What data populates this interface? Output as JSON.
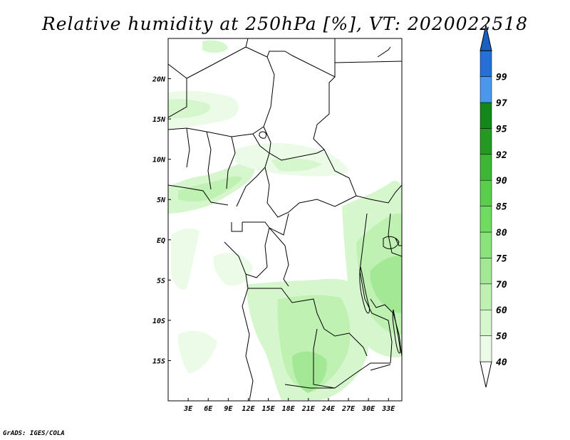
{
  "credit": "GrADS: IGES/COLA",
  "chart_data": {
    "type": "heatmap",
    "title": "Relative humidity at 250hPa [%], VT: 2020022518",
    "variable": "Relative humidity",
    "units": "%",
    "level": "250hPa",
    "valid_time": "2020022518",
    "x_axis": {
      "label": "",
      "range_deg_east": [
        0,
        35
      ],
      "ticks": [
        {
          "value": 3,
          "label": "3E"
        },
        {
          "value": 6,
          "label": "6E"
        },
        {
          "value": 9,
          "label": "9E"
        },
        {
          "value": 12,
          "label": "12E"
        },
        {
          "value": 15,
          "label": "15E"
        },
        {
          "value": 18,
          "label": "18E"
        },
        {
          "value": 21,
          "label": "21E"
        },
        {
          "value": 24,
          "label": "24E"
        },
        {
          "value": 27,
          "label": "27E"
        },
        {
          "value": 30,
          "label": "30E"
        },
        {
          "value": 33,
          "label": "33E"
        }
      ]
    },
    "y_axis": {
      "label": "",
      "range_deg_north": [
        -20,
        25
      ],
      "ticks": [
        {
          "value": 20,
          "label": "20N"
        },
        {
          "value": 15,
          "label": "15N"
        },
        {
          "value": 10,
          "label": "10N"
        },
        {
          "value": 5,
          "label": "5N"
        },
        {
          "value": 0,
          "label": "EQ"
        },
        {
          "value": -5,
          "label": "5S"
        },
        {
          "value": -10,
          "label": "10S"
        },
        {
          "value": -15,
          "label": "15S"
        }
      ]
    },
    "colorbar": {
      "orientation": "vertical",
      "placement": "right",
      "levels": [
        {
          "label": "40",
          "color": "#ebfbe7"
        },
        {
          "label": "50",
          "color": "#d6f6cd"
        },
        {
          "label": "60",
          "color": "#bff1b2"
        },
        {
          "label": "70",
          "color": "#a3e995"
        },
        {
          "label": "75",
          "color": "#8be37b"
        },
        {
          "label": "80",
          "color": "#6fdb60"
        },
        {
          "label": "85",
          "color": "#58cf4a"
        },
        {
          "label": "90",
          "color": "#3bb635"
        },
        {
          "label": "92",
          "color": "#239a22"
        },
        {
          "label": "95",
          "color": "#12871a"
        },
        {
          "label": "97",
          "color": "#4a98ee"
        },
        {
          "label": "99",
          "color": "#2470d6"
        }
      ],
      "top_triangle_color": "#1a5fc2",
      "bottom_triangle_color": "#ffffff"
    },
    "regions": [
      {
        "name": "west-africa-coast-band",
        "lon": [
          0,
          12
        ],
        "lat": [
          3,
          9
        ],
        "value_level": "50-60"
      },
      {
        "name": "sahel-band",
        "lon": [
          0,
          8
        ],
        "lat": [
          13,
          17
        ],
        "value_level": "40-50"
      },
      {
        "name": "central-band",
        "lon": [
          15,
          25
        ],
        "lat": [
          8,
          12
        ],
        "value_level": "40-50"
      },
      {
        "name": "east-africa-moist",
        "lon": [
          27,
          34
        ],
        "lat": [
          -12,
          6
        ],
        "value_level": "60-75"
      },
      {
        "name": "angola-zambia-moist",
        "lon": [
          13,
          28
        ],
        "lat": [
          -20,
          -5
        ],
        "value_level": "50-70"
      },
      {
        "name": "gulf-of-guinea-streak",
        "lon": [
          3,
          12
        ],
        "lat": [
          -8,
          3
        ],
        "value_level": "40-50"
      }
    ]
  }
}
